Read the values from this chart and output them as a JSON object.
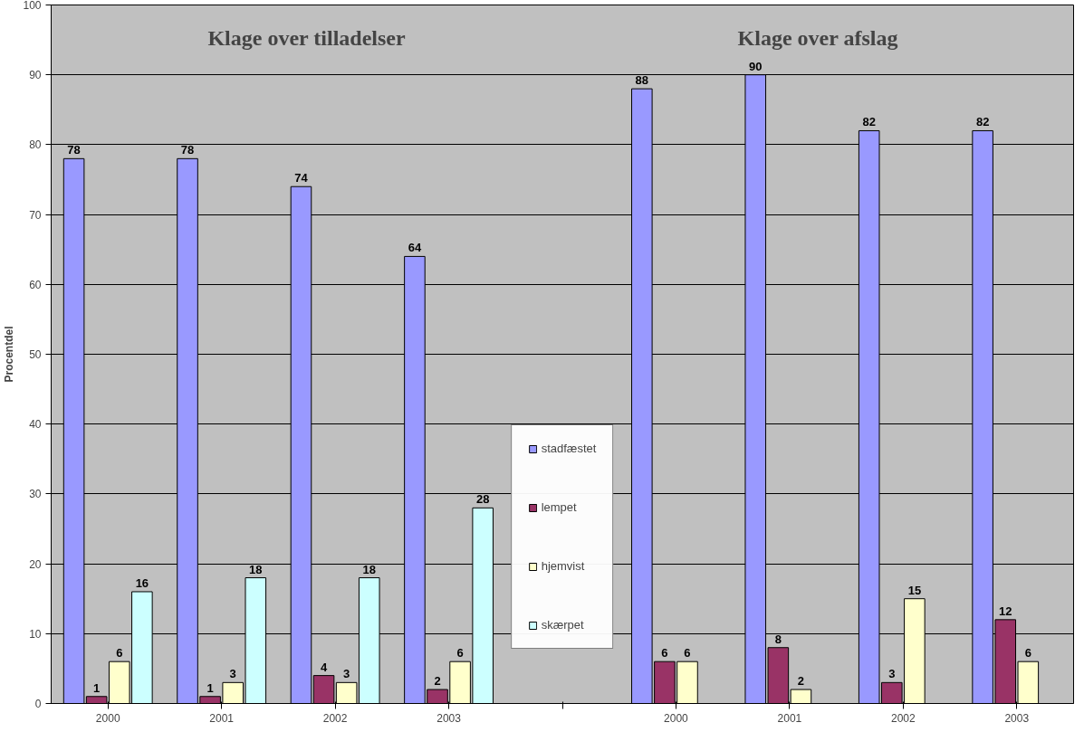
{
  "chart_data": {
    "type": "bar",
    "categories": [
      "2000",
      "2001",
      "2002",
      "2003",
      null,
      "2000",
      "2001",
      "2002",
      "2003"
    ],
    "series": [
      {
        "name": "stadfæstet",
        "color": "#9999ff",
        "values": [
          78,
          78,
          74,
          64,
          null,
          88,
          90,
          82,
          82
        ]
      },
      {
        "name": "lempet",
        "color": "#993366",
        "values": [
          1,
          1,
          4,
          2,
          null,
          6,
          8,
          3,
          12
        ]
      },
      {
        "name": "hjemvist",
        "color": "#ffffcc",
        "values": [
          6,
          3,
          3,
          6,
          null,
          6,
          2,
          15,
          6
        ]
      },
      {
        "name": "skærpet",
        "color": "#ccffff",
        "values": [
          16,
          18,
          18,
          28,
          null,
          null,
          null,
          null,
          null
        ]
      }
    ],
    "ylabel": "Procentdel",
    "ylim": [
      0,
      100
    ],
    "yticks": [
      0,
      10,
      20,
      30,
      40,
      50,
      60,
      70,
      80,
      90,
      100
    ],
    "annotations": [
      "Klage over tilladelser",
      "Klage over afslag"
    ],
    "data_labels": true,
    "grid": "y",
    "legend": "bottom"
  }
}
